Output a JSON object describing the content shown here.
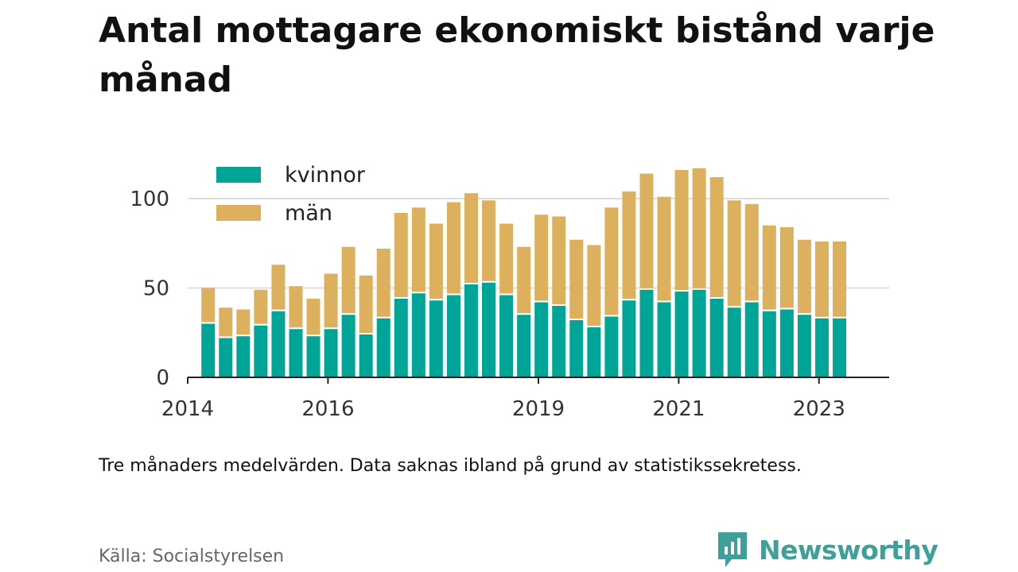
{
  "title": "Antal mottagare ekonomiskt bistånd varje månad",
  "note": "Tre månaders medelvärden. Data saknas ibland på grund av statistikssekretess.",
  "source": "Källa: Socialstyrelsen",
  "logo_text": "Newsworthy",
  "colors": {
    "kvinnor": "#00a598",
    "man": "#ddb05d",
    "grid": "#dddddd",
    "axis": "#222222",
    "logo": "#3f9f99"
  },
  "legend": [
    {
      "label": "kvinnor",
      "color": "#00a598"
    },
    {
      "label": "män",
      "color": "#ddb05d"
    }
  ],
  "chart_data": {
    "type": "bar",
    "stacked": true,
    "x_start": "2014-01",
    "x_end": "2023-12",
    "xticks": [
      "2014",
      "2016",
      "2019",
      "2021",
      "2023"
    ],
    "yticks": [
      0,
      50,
      100
    ],
    "ylim": [
      0,
      120
    ],
    "grid": true,
    "legend_position": "top-left",
    "categories": [
      "2014-04",
      "2014-07",
      "2014-10",
      "2015-01",
      "2015-04",
      "2015-07",
      "2015-10",
      "2016-01",
      "2016-04",
      "2016-07",
      "2016-10",
      "2017-01",
      "2017-04",
      "2017-07",
      "2017-10",
      "2018-01",
      "2018-04",
      "2018-07",
      "2018-10",
      "2019-01",
      "2019-04",
      "2019-07",
      "2019-10",
      "2020-01",
      "2020-04",
      "2020-07",
      "2020-10",
      "2021-01",
      "2021-04",
      "2021-07",
      "2021-10",
      "2022-01",
      "2022-04",
      "2022-07",
      "2022-10",
      "2023-01",
      "2023-04"
    ],
    "series": [
      {
        "name": "kvinnor",
        "values": [
          30,
          22,
          23,
          29,
          37,
          27,
          23,
          27,
          35,
          24,
          33,
          44,
          47,
          43,
          46,
          52,
          53,
          46,
          35,
          42,
          40,
          32,
          28,
          34,
          43,
          49,
          42,
          48,
          49,
          44,
          39,
          42,
          37,
          38,
          35,
          33,
          33
        ]
      },
      {
        "name": "män",
        "values": [
          20,
          17,
          15,
          20,
          26,
          24,
          21,
          31,
          38,
          33,
          39,
          48,
          48,
          43,
          52,
          51,
          46,
          40,
          38,
          49,
          50,
          45,
          46,
          61,
          61,
          65,
          59,
          68,
          68,
          68,
          60,
          55,
          48,
          46,
          42,
          43,
          43
        ]
      }
    ]
  }
}
